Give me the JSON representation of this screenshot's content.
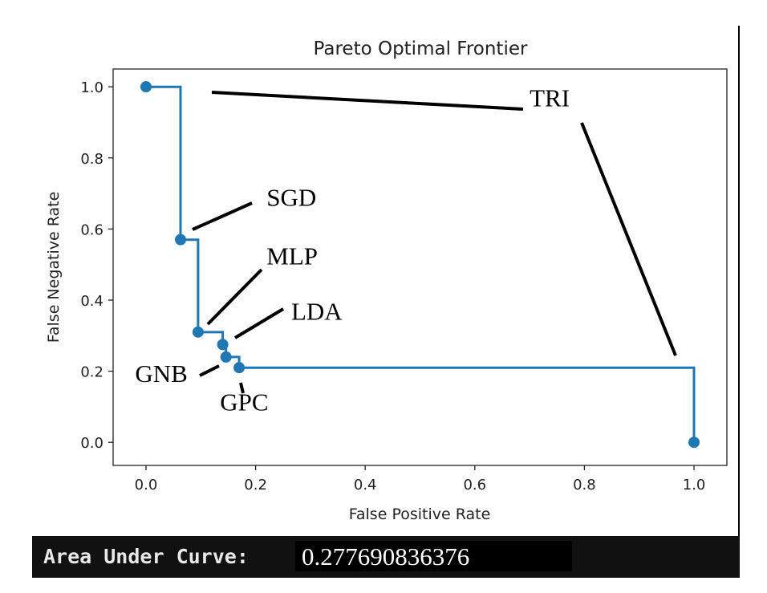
{
  "chart_data": {
    "type": "line",
    "title": "Pareto Optimal Frontier",
    "xlabel": "False Positive Rate",
    "ylabel": "False Negative Rate",
    "xlim": [
      -0.06,
      1.06
    ],
    "ylim": [
      -0.065,
      1.05
    ],
    "xticks": [
      "0.0",
      "0.2",
      "0.4",
      "0.6",
      "0.8",
      "1.0"
    ],
    "yticks": [
      "0.0",
      "0.2",
      "0.4",
      "0.6",
      "0.8",
      "1.0"
    ],
    "grid": false,
    "line_color": "#1f77b4",
    "step_path": [
      [
        0.0,
        1.0
      ],
      [
        0.063,
        1.0
      ],
      [
        0.063,
        0.57
      ],
      [
        0.095,
        0.57
      ],
      [
        0.095,
        0.31
      ],
      [
        0.14,
        0.31
      ],
      [
        0.14,
        0.275
      ],
      [
        0.146,
        0.275
      ],
      [
        0.146,
        0.24
      ],
      [
        0.17,
        0.24
      ],
      [
        0.17,
        0.21
      ],
      [
        1.0,
        0.21
      ],
      [
        1.0,
        0.0
      ]
    ],
    "points": [
      [
        0.0,
        1.0
      ],
      [
        0.063,
        0.57
      ],
      [
        0.095,
        0.31
      ],
      [
        0.14,
        0.275
      ],
      [
        0.146,
        0.24
      ],
      [
        0.17,
        0.21
      ],
      [
        1.0,
        0.0
      ]
    ],
    "annotations": [
      {
        "text": "TRI",
        "x": 0.7,
        "y": 0.945
      },
      {
        "text": "SGD",
        "x": 0.22,
        "y": 0.665
      },
      {
        "text": "MLP",
        "x": 0.22,
        "y": 0.5
      },
      {
        "text": "LDA",
        "x": 0.265,
        "y": 0.345
      },
      {
        "text": "GNB",
        "x": -0.02,
        "y": 0.17
      },
      {
        "text": "GPC",
        "x": 0.135,
        "y": 0.09
      }
    ]
  },
  "status_bar": {
    "label": "Area Under Curve:",
    "value": "0.277690836376"
  }
}
